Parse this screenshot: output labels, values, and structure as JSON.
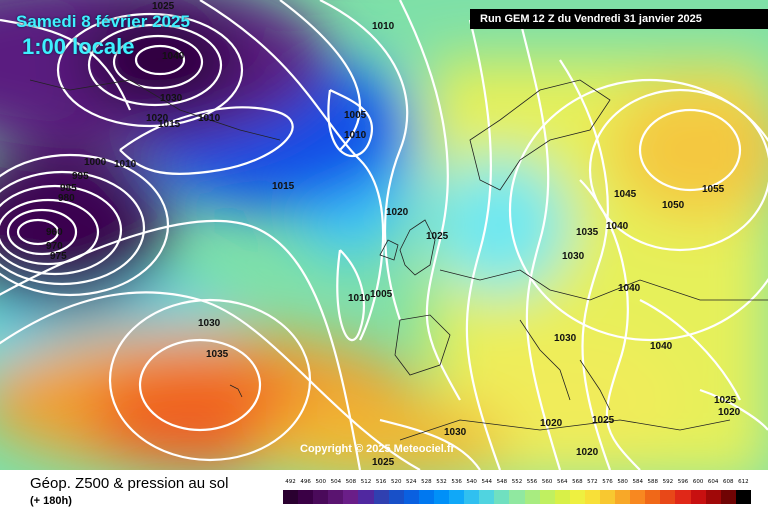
{
  "header": {
    "date": "Samedi 8 février 2025",
    "time": "1:00 locale",
    "run": "Run GEM 12 Z du Vendredi 31 janvier 2025"
  },
  "map": {
    "copyright": "Copyright © 2025 Meteociel.fr",
    "isobar_labels": [
      "1025",
      "1040",
      "1010",
      "1030",
      "1020",
      "1015",
      "1010",
      "1005",
      "1010",
      "995",
      "985",
      "980",
      "1000",
      "1010",
      "960",
      "970",
      "975",
      "1015",
      "1020",
      "1025",
      "1010",
      "1005",
      "1030",
      "1035",
      "1045",
      "1055",
      "1050",
      "1035",
      "1040",
      "1030",
      "1040",
      "1030",
      "1040",
      "1025",
      "1020",
      "1020",
      "1025",
      "1030",
      "1020",
      "1025"
    ]
  },
  "footer": {
    "title": "Géop. Z500 & pression au sol",
    "subtitle": "(+ 180h)"
  },
  "scale": {
    "labels": [
      "492",
      "496",
      "500",
      "504",
      "508",
      "512",
      "516",
      "520",
      "524",
      "528",
      "532",
      "536",
      "540",
      "544",
      "548",
      "552",
      "556",
      "560",
      "564",
      "568",
      "572",
      "576",
      "580",
      "584",
      "588",
      "592",
      "596",
      "600",
      "604",
      "608",
      "612"
    ],
    "colors": [
      "#2a0030",
      "#3a0045",
      "#4a0a5a",
      "#5a1470",
      "#6a1e88",
      "#5028a0",
      "#3040b0",
      "#1850c8",
      "#0a60e0",
      "#0078f0",
      "#0090f8",
      "#10a8f8",
      "#30c0f0",
      "#50d4e0",
      "#70e0c0",
      "#90e8a0",
      "#a8ec80",
      "#c0f060",
      "#d8f048",
      "#eef040",
      "#f8e038",
      "#f8c830",
      "#f8a828",
      "#f88820",
      "#f06818",
      "#e84818",
      "#e02818",
      "#c81010",
      "#a00808",
      "#700404",
      "#000000"
    ]
  }
}
